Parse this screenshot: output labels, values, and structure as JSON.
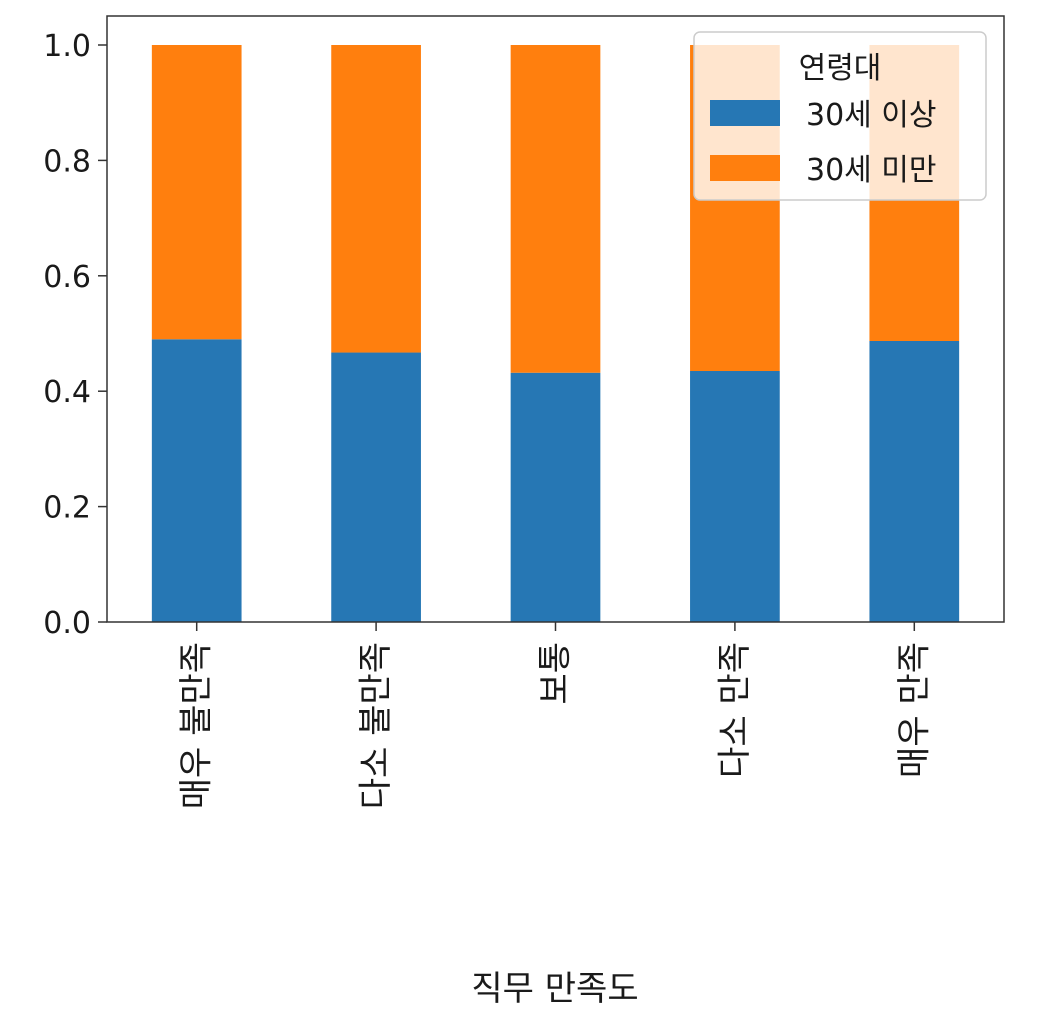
{
  "chart_data": {
    "type": "bar",
    "stacked": true,
    "categories": [
      "매우 불만족",
      "다소 불만족",
      "보통",
      "다소 만족",
      "매우 만족"
    ],
    "series": [
      {
        "name": "30세 이상",
        "color": "#2677b4",
        "values": [
          0.49,
          0.467,
          0.432,
          0.435,
          0.487
        ]
      },
      {
        "name": "30세 미만",
        "color": "#ff7f0e",
        "values": [
          0.51,
          0.533,
          0.568,
          0.565,
          0.513
        ]
      }
    ],
    "xlabel": "직무 만족도",
    "ylabel": "",
    "ylim": [
      0,
      1.0
    ],
    "yticks": [
      "0.0",
      "0.2",
      "0.4",
      "0.6",
      "0.8",
      "1.0"
    ],
    "legend": {
      "title": "연령대",
      "placement": "top-right"
    },
    "grid": false
  }
}
